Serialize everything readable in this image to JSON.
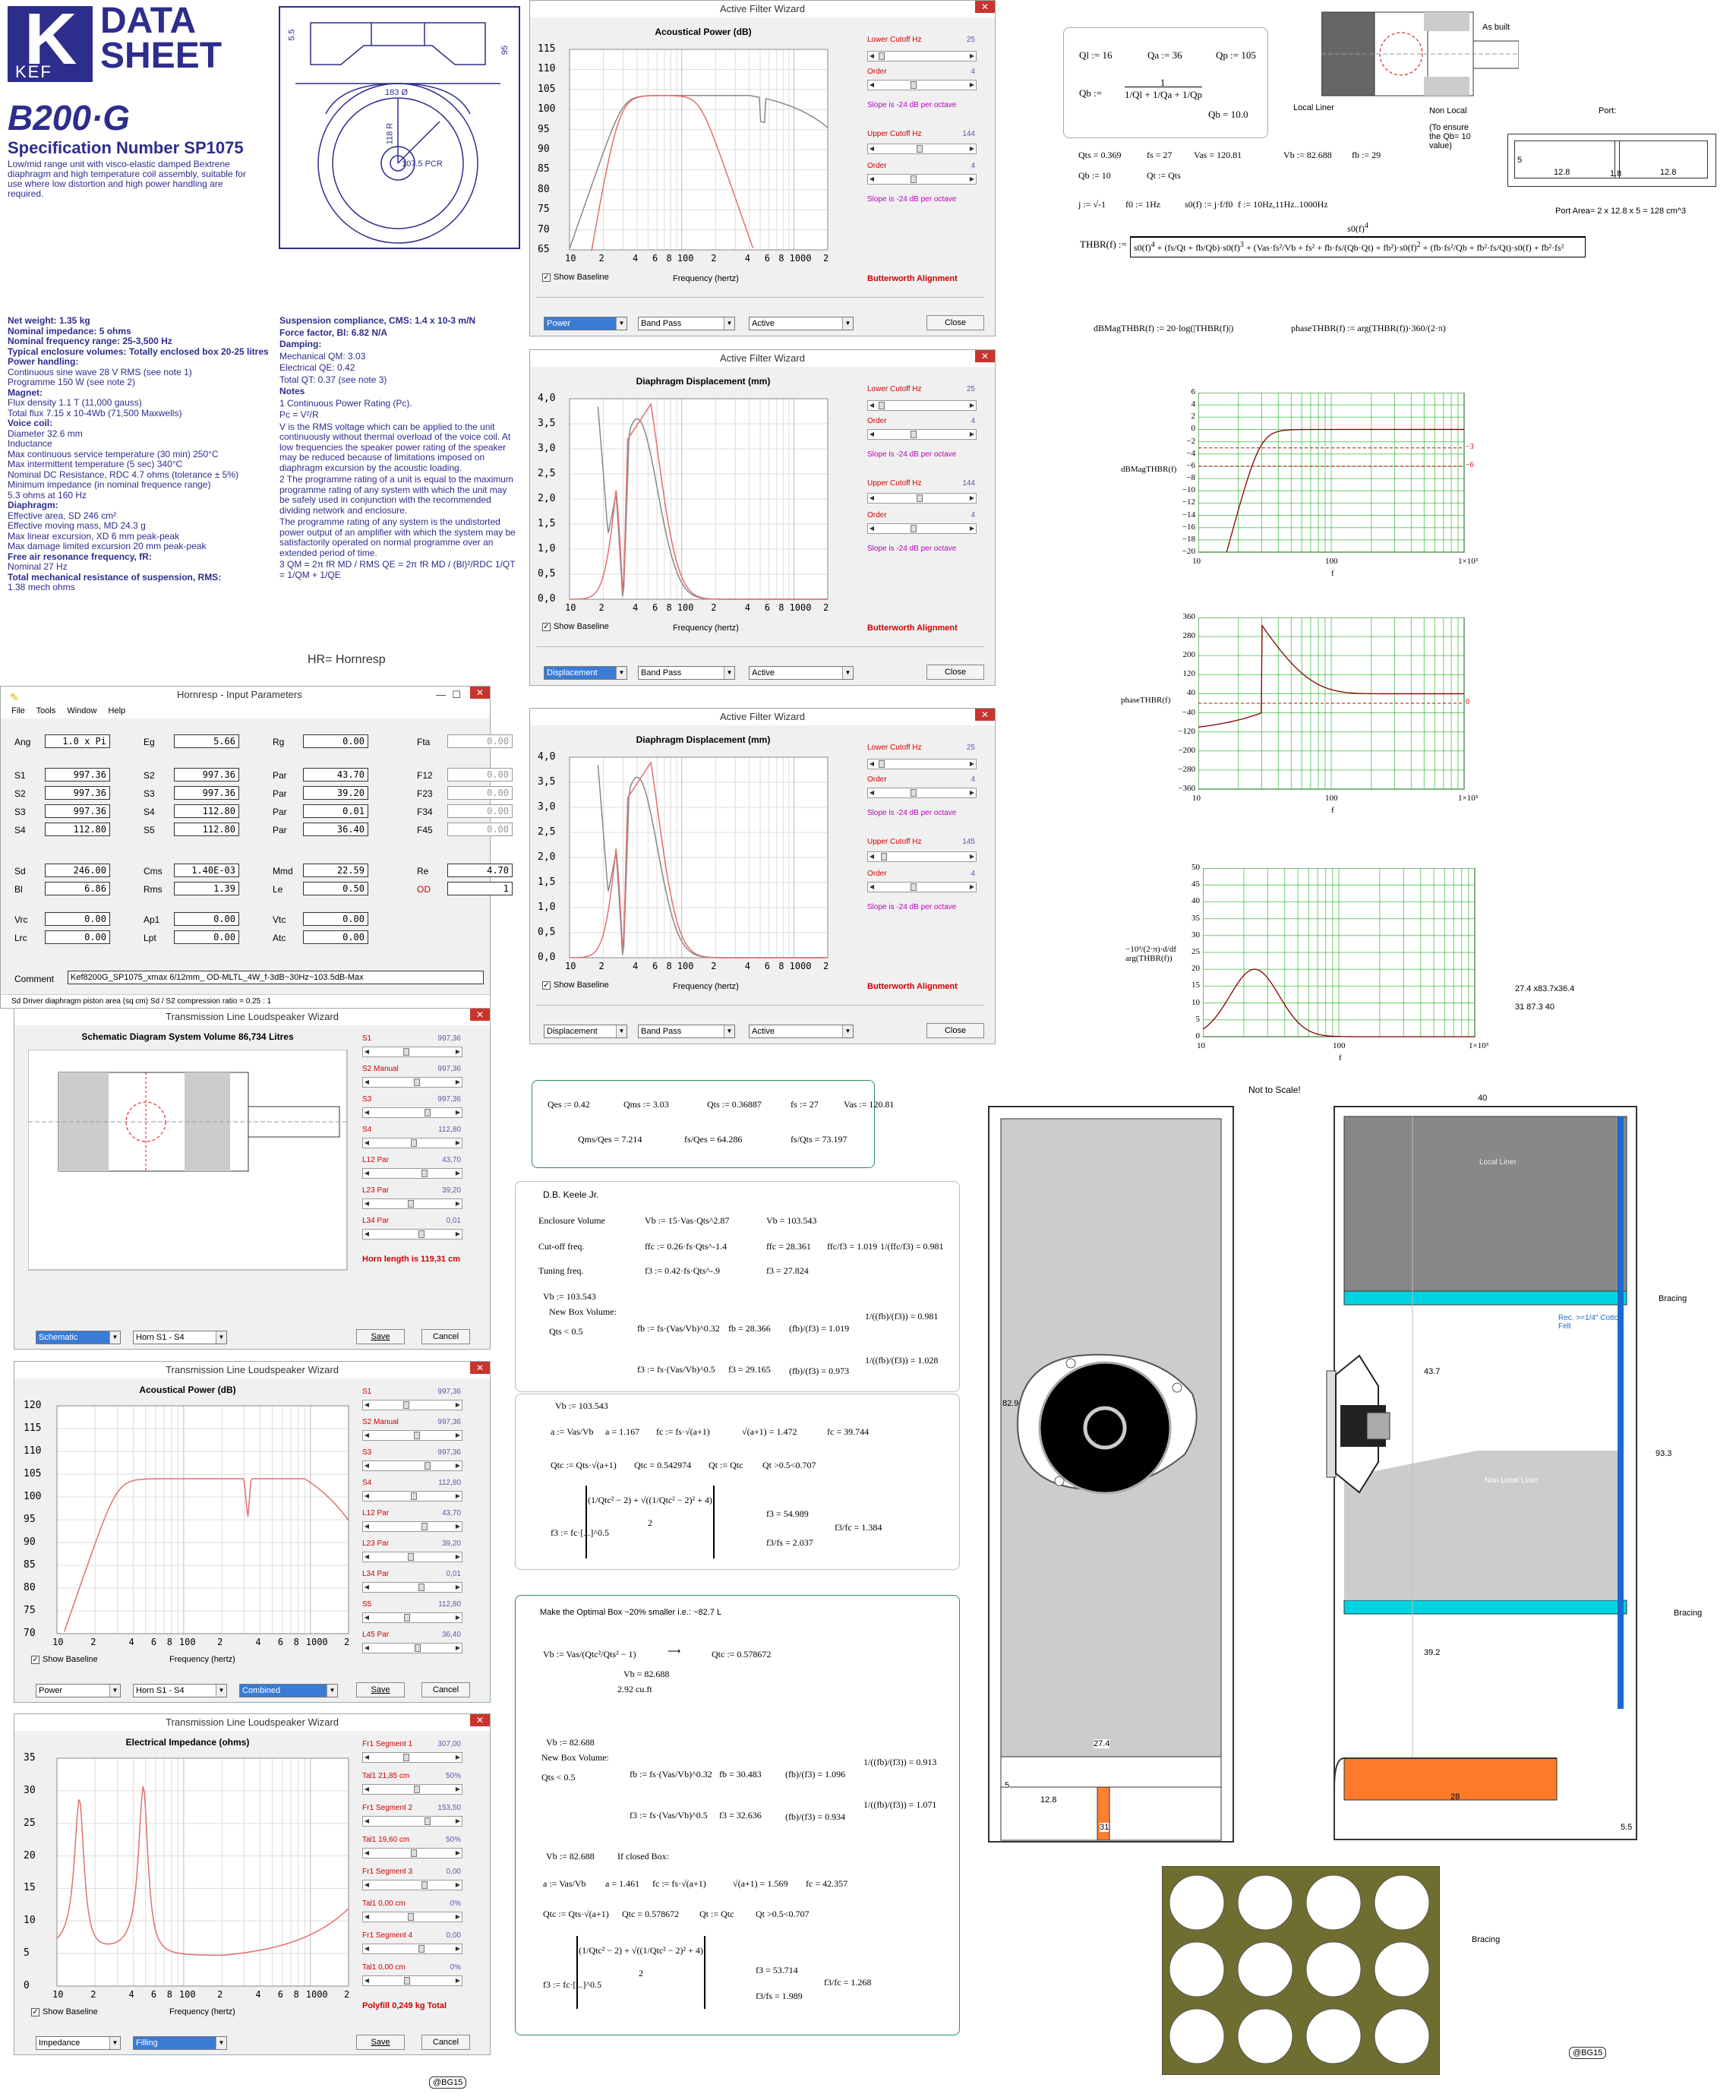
{
  "datasheet": {
    "brand": "KEF",
    "title_line1": "DATA",
    "title_line2": "SHEET",
    "model": "B200·G",
    "spec": "Specification Number SP1075",
    "desc": "Low/mid range unit with visco-elastic damped Bextrene diaphragm and high temperature coil assembly, suitable for use where low distortion and high power handling are required.",
    "dims": {
      "d1": "183 Ø",
      "d2": "95",
      "d3": "5.5",
      "d4": "118 R",
      "d5": "107.5 PCR"
    },
    "left_specs": [
      "Net weight: 1.35 kg",
      "Nominal impedance: 5 ohms",
      "Nominal frequency range: 25-3,500 Hz",
      "Typical enclosure volumes: Totally enclosed box 20-25 litres",
      "Power handling:",
      "Continuous sine wave 28 V RMS (see note 1)",
      "Programme 150 W (see note 2)",
      "Magnet:",
      "Flux density 1.1 T (11,000 gauss)",
      "Total flux 7.15 x 10-4Wb (71,500 Maxwells)",
      "Voice coil:",
      "Diameter 32.6 mm",
      "Inductance",
      "Max continuous service temperature (30 min) 250°C",
      "Max intermittent temperature (5 sec) 340°C",
      "Nominal DC Resistance, RDC 4.7 ohms (tolerance ± 5%)",
      "Minimum impedance (in nominal frequence range)",
      "5.3 ohms at 160 Hz",
      "Diaphragm:",
      "Effective area, SD 246 cm²",
      "Effective moving mass, MD 24.3 g",
      "Max linear excursion, XD 6 mm peak-peak",
      "Max damage limited excursion 20 mm peak-peak",
      "Free air resonance frequency, fR:",
      "Nominal 27 Hz",
      "Total mechanical resistance of suspension, RMS:",
      "1.38 mech ohms"
    ],
    "right_specs": [
      "Suspension compliance, CMS: 1.4 x 10-3 m/N",
      "Force factor, Bl: 6.82 N/A",
      "Damping:",
      "Mechanical QM: 3.03",
      "Electrical QE: 0.42",
      "Total QT: 0.37 (see note 3)",
      "Notes",
      "1  Continuous Power Rating (Pc).",
      "Pc = V²/R",
      "V is the RMS voltage which can be applied to the unit continuously without thermal overload of the voice coil. At low frequencies the speaker power rating of the speaker may be reduced because of limitations imposed on diaphragm excursion by the acoustic loading.",
      "2  The programme rating of a unit is equal to the maximum programme rating of any system with which the unit may be safely used in conjunction with the recommended dividing network and enclosure.",
      "The programme rating of any system is the undistorted power output of an amplifier with which the system may be satisfactorily operated on normal programme over an extended period of time.",
      "3  QM = 2π fR MD / RMS    QE = 2π fR MD / (Bl)²/RDC    1/QT = 1/QM + 1/QE"
    ],
    "hr_note": "HR= Hornresp"
  },
  "hornresp": {
    "title": "Hornresp - Input Parameters",
    "menu": [
      "File",
      "Tools",
      "Window",
      "Help"
    ],
    "rows": [
      [
        [
          "Ang",
          "1.0 x Pi"
        ],
        [
          "Eg",
          "5.66"
        ],
        [
          "Rg",
          "0.00"
        ],
        [
          "Fta",
          "0.00"
        ]
      ],
      [
        [
          "S1",
          "997.36"
        ],
        [
          "S2",
          "997.36"
        ],
        [
          "Par",
          "43.70"
        ],
        [
          "F12",
          "0.00"
        ]
      ],
      [
        [
          "S2",
          "997.36"
        ],
        [
          "S3",
          "997.36"
        ],
        [
          "Par",
          "39.20"
        ],
        [
          "F23",
          "0.00"
        ]
      ],
      [
        [
          "S3",
          "997.36"
        ],
        [
          "S4",
          "112.80"
        ],
        [
          "Par",
          "0.01"
        ],
        [
          "F34",
          "0.00"
        ]
      ],
      [
        [
          "S4",
          "112.80"
        ],
        [
          "S5",
          "112.80"
        ],
        [
          "Par",
          "36.40"
        ],
        [
          "F45",
          "0.00"
        ]
      ],
      [
        [
          "Sd",
          "246.00"
        ],
        [
          "Cms",
          "1.40E-03"
        ],
        [
          "Mmd",
          "22.59"
        ],
        [
          "Re",
          "4.70"
        ]
      ],
      [
        [
          "Bl",
          "6.86"
        ],
        [
          "Rms",
          "1.39"
        ],
        [
          "Le",
          "0.50"
        ],
        [
          "OD",
          "1"
        ]
      ],
      [
        [
          "Vrc",
          "0.00"
        ],
        [
          "Ap1",
          "0.00"
        ],
        [
          "Vtc",
          "0.00"
        ],
        [
          "",
          ""
        ]
      ],
      [
        [
          "Lrc",
          "0.00"
        ],
        [
          "Lpt",
          "0.00"
        ],
        [
          "Atc",
          "0.00"
        ],
        [
          "",
          ""
        ]
      ]
    ],
    "comment_label": "Comment",
    "comment": "Kef8200G_SP1075_xmax 6/12mm_ OD-MLTL_4W_f-3dB~30Hz~103.5dB-Max",
    "status": "Sd   Driver diaphragm piston area (sq cm)    Sd / S2 compression ratio = 0.25 : 1"
  },
  "afw": {
    "title": "Active Filter Wizard",
    "lower_cutoff": "Lower Cutoff  Hz",
    "order": "Order",
    "slope": "Slope is -24 dB per octave",
    "upper_cutoff": "Upper Cutoff  Hz",
    "show_baseline": "Show Baseline",
    "freq_label": "Frequency (hertz)",
    "butterworth": "Butterworth Alignment",
    "band_pass": "Band Pass",
    "active": "Active",
    "close": "Close",
    "w1": {
      "chart": "Acoustical Power (dB)",
      "lower": "25",
      "order1": "4",
      "upper": "144",
      "order2": "4",
      "mode": "Power",
      "yticks": [
        "115",
        "110",
        "105",
        "100",
        "95",
        "90",
        "85",
        "80",
        "75",
        "70",
        "65"
      ]
    },
    "w2": {
      "chart": "Diaphragm Displacement (mm)",
      "lower": "25",
      "order1": "4",
      "upper": "144",
      "order2": "4",
      "mode": "Displacement",
      "yticks": [
        "4,0",
        "3,5",
        "3,0",
        "2,5",
        "2,0",
        "1,5",
        "1,0",
        "0,5",
        "0,0"
      ]
    },
    "w3": {
      "chart": "Diaphragm Displacement (mm)",
      "lower": "25",
      "order1": "4",
      "upper": "145",
      "order2": "4",
      "mode": "Displacement",
      "yticks": [
        "4,0",
        "3,5",
        "3,0",
        "2,5",
        "2,0",
        "1,5",
        "1,0",
        "0,5",
        "0,0"
      ]
    },
    "xticks": [
      "10",
      "2",
      "4",
      "6",
      "8",
      "100",
      "2",
      "4",
      "6",
      "8",
      "1000",
      "2"
    ]
  },
  "tlw": {
    "title": "Transmission Line Loudspeaker Wizard",
    "w1": {
      "chart": "Schematic Diagram   System Volume 86,734 Litres",
      "params": [
        [
          "S1",
          "997,36"
        ],
        [
          "S2  Manual",
          "997,36"
        ],
        [
          "S3",
          "997,36"
        ],
        [
          "S4",
          "112,80"
        ],
        [
          "L12  Par",
          "43,70"
        ],
        [
          "L23  Par",
          "39,20"
        ],
        [
          "L34  Par",
          "0,01"
        ]
      ],
      "horn_len": "Horn length is 119,31 cm",
      "sel1": "Schematic",
      "sel2": "Horn S1 - S4",
      "save": "Save",
      "cancel": "Cancel"
    },
    "w2": {
      "chart": "Acoustical Power (dB)",
      "params": [
        [
          "S1",
          "997,36"
        ],
        [
          "S2  Manual",
          "997,36"
        ],
        [
          "S3",
          "997,36"
        ],
        [
          "S4",
          "112,80"
        ],
        [
          "L12  Par",
          "43,70"
        ],
        [
          "L23  Par",
          "39,20"
        ],
        [
          "L34  Par",
          "0,01"
        ],
        [
          "S5",
          "112,80"
        ],
        [
          "L45  Par",
          "36,40"
        ]
      ],
      "yticks": [
        "120",
        "115",
        "110",
        "105",
        "100",
        "95",
        "90",
        "85",
        "80",
        "75",
        "70"
      ],
      "sel1": "Power",
      "sel2": "Horn S1 - S4",
      "sel3": "Combined",
      "show_baseline": "Show Baseline",
      "freq_label": "Frequency (hertz)",
      "save": "Save",
      "cancel": "Cancel"
    },
    "w3": {
      "chart": "Electrical Impedance (ohms)",
      "params": [
        [
          "Fr1  Segment 1",
          "307,00"
        ],
        [
          "Tal1  21,85 cm",
          "50%"
        ],
        [
          "Fr1  Segment 2",
          "153,50"
        ],
        [
          "Tal1  19,60 cm",
          "50%"
        ],
        [
          "Fr1  Segment 3",
          "0,00"
        ],
        [
          "Tal1  0,00 cm",
          "0%"
        ],
        [
          "Fr1  Segment 4",
          "0,00"
        ],
        [
          "Tal1  0,00 cm",
          "0%"
        ]
      ],
      "polyfill": "Polyfill   0,249 kg    Total",
      "yticks": [
        "35",
        "30",
        "25",
        "20",
        "15",
        "10",
        "5",
        "0"
      ],
      "sel1": "Impedance",
      "sel2": "Filling",
      "show_baseline": "Show Baseline",
      "freq_label": "Frequency (hertz)",
      "save": "Save",
      "cancel": "Cancel"
    },
    "xticks": [
      "10",
      "2",
      "4",
      "6",
      "8",
      "100",
      "2",
      "4",
      "6",
      "8",
      "1000",
      "2"
    ],
    "credit": "@BG15"
  },
  "mathcad": {
    "q_box": {
      "ql": "Ql := 16",
      "qa": "Qa := 36",
      "qp": "Qp := 105",
      "qb_lhs": "Qb :=",
      "qb_val": "Qb = 10.0"
    },
    "params_line": [
      "Qts = 0.369",
      "fs = 27",
      "Vas = 120.81",
      "Vb := 82.688",
      "fb := 29"
    ],
    "params_line2": [
      "Qb := 10",
      "Qt := Qts"
    ],
    "j_line": [
      "j := √-1",
      "f0 := 1Hz",
      "s0(f) := j·f/f0",
      "f := 10Hz,11Hz..1000Hz"
    ],
    "thbr_lhs": "THBR(f) :=",
    "dbmag": "dBMagTHBR(f) := 20·log(|THBR(f)|)",
    "phase": "phaseTHBR(f) := arg(THBR(f))·360/(2·π)",
    "labels": {
      "local": "Local Liner",
      "nonlocal": "Non Local",
      "ensure": "(To ensure the Qb= 10 value)",
      "port": "Port:",
      "as_built": "As built",
      "port_area": "Port Area= 2 x 12.8 x 5 = 128 cm^3",
      "port_vals": [
        "5",
        "12.8",
        "1.8",
        "12.8"
      ]
    },
    "graph1": {
      "ylabel": "dBMagTHBR(f)",
      "yticks": [
        "6",
        "4",
        "2",
        "0",
        "−2",
        "−4",
        "−6",
        "−8",
        "−10",
        "−12",
        "−14",
        "−16",
        "−18",
        "−20"
      ],
      "xticks": [
        "10",
        "100",
        "1×10³"
      ],
      "xlabel": "f",
      "marks": [
        "−3",
        "−6"
      ]
    },
    "graph2": {
      "ylabel": "phaseTHBR(f)",
      "yticks": [
        "360",
        "280",
        "200",
        "120",
        "40",
        "−40",
        "−120",
        "−200",
        "−280",
        "−360"
      ],
      "xticks": [
        "10",
        "100",
        "1×10³"
      ],
      "xlabel": "f",
      "marks": [
        "0"
      ]
    },
    "graph3": {
      "ylabel": "−10³/(2·π)·d/df arg(THBR(f))",
      "yticks": [
        "50",
        "45",
        "40",
        "35",
        "30",
        "25",
        "20",
        "15",
        "10",
        "5",
        "0"
      ],
      "xticks": [
        "10",
        "100",
        "1×10³"
      ],
      "xlabel": "f"
    },
    "dims_note": [
      "27.4  x83.7x36.4",
      "31    87.3    40"
    ],
    "ts_box": {
      "line1": [
        "Qes := 0.42",
        "Qms := 3.03",
        "Qts := 0.36887",
        "fs := 27",
        "Vas := 120.81"
      ],
      "line2": [
        "Qms/Qes = 7.214",
        "fs/Qes = 64.286",
        "fs/Qts = 73.197"
      ]
    },
    "keele": {
      "title": "D.B. Keele Jr.",
      "rows": [
        [
          "Enclosure Volume",
          "Vb := 15·Vas·Qts^2.87",
          "Vb = 103.543"
        ],
        [
          "Cut-off freq.",
          "ffc := 0.26·fs·Qts^-1.4",
          "ffc = 28.361",
          "ffc/f3 = 1.019",
          "1/(ffc/f3) = 0.981"
        ],
        [
          "Tuning freq.",
          "f3 := 0.42·fs·Qts^-.9",
          "f3 = 27.824"
        ]
      ],
      "vb": "Vb := 103.543",
      "new_box": "New Box Volume:",
      "qts_cond": "Qts < 0.5",
      "fb1": "fb := fs·(Vas/Vb)^0.32",
      "fb1v": "fb = 28.366",
      "fb1r": "(fb)/(f3) = 1.019",
      "fb1i": "1/((fb)/(f3)) = 0.981",
      "f31": "f3 := fs·(Vas/Vb)^0.5",
      "f31v": "f3 = 29.165",
      "f31r": "(fb)/(f3) = 0.973",
      "f31i": "1/((fb)/(f3)) = 1.028"
    },
    "closed1": {
      "vb": "Vb := 103.543",
      "a": "a := Vas/Vb",
      "av": "a = 1.167",
      "fc": "fc := fs·√(a+1)",
      "fcr": "√(a+1) = 1.472",
      "fcv": "fc = 39.744",
      "qtc": "Qtc := Qts·√(a+1)",
      "qtcv": "Qtc = 0.542974",
      "qtq": "Qt := Qtc",
      "qtcond": "Qt >0.5<0.707",
      "f3": "f3 := fc·[...]^0.5",
      "f3v": "f3 = 54.989",
      "f3r": "f3/fs = 2.037",
      "f3c": "f3/fc = 1.384"
    },
    "optimal": {
      "title": "Make the Optimal Box ~20% smaller i.e.:  ~82.7 L",
      "vb": "Vb := Vas/(Qtc²/Qts² − 1)",
      "qtc": "Qtc := 0.578672",
      "vbv": "Vb = 82.688",
      "cuft": "2.92 cu.ft",
      "vb2": "Vb := 82.688",
      "new_box": "New Box Volume:",
      "qts_cond": "Qts < 0.5",
      "fb": "fb := fs·(Vas/Vb)^0.32",
      "fbv": "fb = 30.483",
      "fbr": "(fb)/(f3) = 1.096",
      "fbi": "1/((fb)/(f3)) = 0.913",
      "f3": "f3 := fs·(Vas/Vb)^0.5",
      "f3v": "f3 = 32.636",
      "f3r": "(fb)/(f3) = 0.934",
      "f3i": "1/((fb)/(f3)) = 1.071",
      "vb3": "Vb := 82.688",
      "closed": "If closed Box:",
      "a": "a := Vas/Vb",
      "av": "a = 1.461",
      "fc": "fc := fs·√(a+1)",
      "fcr": "√(a+1) = 1.569",
      "fcv": "fc = 42.357",
      "qtc2": "Qtc := Qts·√(a+1)",
      "qtc2v": "Qtc = 0.578672",
      "qtq": "Qt := Qtc",
      "qtcond": "Qt >0.5<0.707",
      "f3b": "f3 := fc·[...]^0.5",
      "f3bv": "f3 = 53.714",
      "f3br": "f3/fs = 1.989",
      "f3bc": "f3/fc = 1.268"
    }
  },
  "drawings": {
    "not_to_scale": "Not to Scale!",
    "front": {
      "h": "82.9",
      "w": "31",
      "port_w": "12.8",
      "port_h": "5",
      "port_d": "27.4"
    },
    "side": {
      "top": "40",
      "local_liner": "Local Liner",
      "bracing1": "Bracing",
      "rec": "Rec. >=1/4\" Cotton Felt",
      "nonlocal": "Non Local Liner",
      "l1": "43.7",
      "h": "93.3",
      "bracing2": "Bracing",
      "l2": "39.2",
      "b28": "28",
      "b55": "5.5"
    },
    "bracing": "Bracing",
    "credit": "@BG15"
  }
}
